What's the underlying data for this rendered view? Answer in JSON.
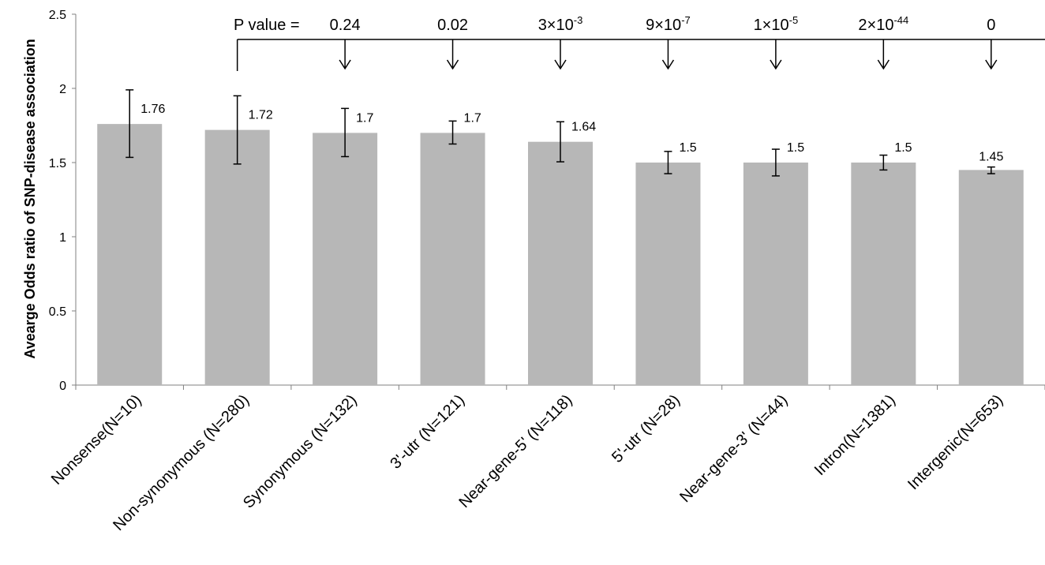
{
  "chart_data": {
    "type": "bar",
    "title": "",
    "xlabel": "",
    "ylabel": "Avearge Odds ratio of SNP-disease association",
    "ylim": [
      0,
      2.5
    ],
    "yticks": [
      "0",
      "0.5",
      "1",
      "1.5",
      "2",
      "2.5"
    ],
    "grid": false,
    "legend": "none",
    "categories": [
      "Nonsense(N=10)",
      "Non-synonymous (N=280)",
      "Synonymous (N=132)",
      "3'-utr (N=121)",
      "Near-gene-5' (N=118)",
      "5'-utr (N=28)",
      "Near-gene-3' (N=44)",
      "Intron(N=1381)",
      "Intergenic(N=653)"
    ],
    "values": [
      1.76,
      1.72,
      1.7,
      1.7,
      1.64,
      1.5,
      1.5,
      1.5,
      1.45
    ],
    "value_labels": [
      "1.76",
      "1.72",
      "1.7",
      "1.7",
      "1.64",
      "1.5",
      "1.5",
      "1.5",
      "1.45"
    ],
    "error_upper": [
      1.99,
      1.95,
      1.865,
      1.78,
      1.775,
      1.575,
      1.59,
      1.55,
      1.47
    ],
    "error_lower": [
      1.535,
      1.49,
      1.54,
      1.625,
      1.505,
      1.425,
      1.41,
      1.45,
      1.425
    ],
    "bar_color": "#b7b7b7",
    "annotation": {
      "prefix": "P  value =",
      "p_values": [
        {
          "category": 2,
          "base": "0.24",
          "exp": ""
        },
        {
          "category": 3,
          "base": "0.02",
          "exp": ""
        },
        {
          "category": 4,
          "base": "3×10",
          "exp": "-3"
        },
        {
          "category": 5,
          "base": "9×10",
          "exp": "-7"
        },
        {
          "category": 6,
          "base": "1×10",
          "exp": "-5"
        },
        {
          "category": 7,
          "base": "2×10",
          "exp": "-44"
        },
        {
          "category": 8,
          "base": "0",
          "exp": ""
        }
      ]
    }
  }
}
